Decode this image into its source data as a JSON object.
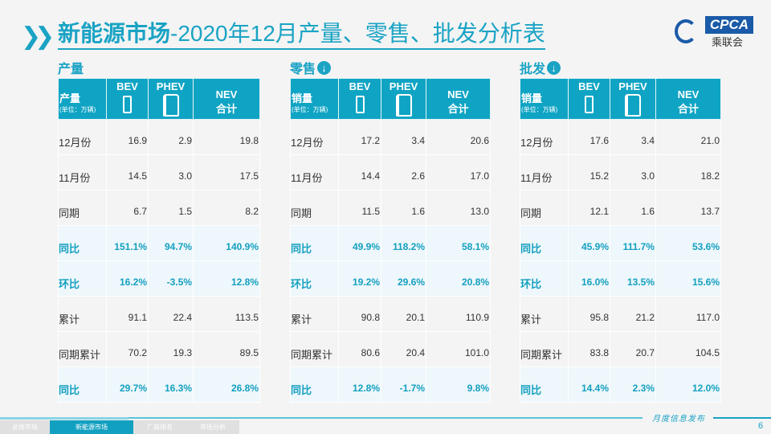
{
  "header": {
    "title_bold": "新能源市场",
    "title_rest": "-2020年12月产量、零售、批发分析表",
    "logo_text": "CPCA",
    "logo_cn": "乘联会"
  },
  "colors": {
    "accent": "#10a4c4",
    "highlight_row_bg": "#eef7fb"
  },
  "columns": [
    "BEV",
    "PHEV",
    "NEV",
    "合计"
  ],
  "tables": [
    {
      "section": "产量",
      "has_down_icon": false,
      "first_header": "产量",
      "unit": "(单位：万辆)",
      "rows": [
        [
          "12月份",
          "16.9",
          "2.9",
          "19.8",
          false
        ],
        [
          "11月份",
          "14.5",
          "3.0",
          "17.5",
          false
        ],
        [
          "同期",
          "6.7",
          "1.5",
          "8.2",
          false
        ],
        [
          "同比",
          "151.1%",
          "94.7%",
          "140.9%",
          true
        ],
        [
          "环比",
          "16.2%",
          "-3.5%",
          "12.8%",
          true
        ],
        [
          "累计",
          "91.1",
          "22.4",
          "113.5",
          false
        ],
        [
          "同期累计",
          "70.2",
          "19.3",
          "89.5",
          false
        ],
        [
          "同比",
          "29.7%",
          "16.3%",
          "26.8%",
          true
        ]
      ]
    },
    {
      "section": "零售",
      "has_down_icon": true,
      "first_header": "销量",
      "unit": "(单位：万辆)",
      "rows": [
        [
          "12月份",
          "17.2",
          "3.4",
          "20.6",
          false
        ],
        [
          "11月份",
          "14.4",
          "2.6",
          "17.0",
          false
        ],
        [
          "同期",
          "11.5",
          "1.6",
          "13.0",
          false
        ],
        [
          "同比",
          "49.9%",
          "118.2%",
          "58.1%",
          true
        ],
        [
          "环比",
          "19.2%",
          "29.6%",
          "20.8%",
          true
        ],
        [
          "累计",
          "90.8",
          "20.1",
          "110.9",
          false
        ],
        [
          "同期累计",
          "80.6",
          "20.4",
          "101.0",
          false
        ],
        [
          "同比",
          "12.8%",
          "-1.7%",
          "9.8%",
          true
        ]
      ]
    },
    {
      "section": "批发",
      "has_down_icon": true,
      "first_header": "销量",
      "unit": "(单位：万辆)",
      "rows": [
        [
          "12月份",
          "17.6",
          "3.4",
          "21.0",
          false
        ],
        [
          "11月份",
          "15.2",
          "3.0",
          "18.2",
          false
        ],
        [
          "同期",
          "12.1",
          "1.6",
          "13.7",
          false
        ],
        [
          "同比",
          "45.9%",
          "111.7%",
          "53.6%",
          true
        ],
        [
          "环比",
          "16.0%",
          "13.5%",
          "15.6%",
          true
        ],
        [
          "累计",
          "95.8",
          "21.2",
          "117.0",
          false
        ],
        [
          "同期累计",
          "83.8",
          "20.7",
          "104.5",
          false
        ],
        [
          "同比",
          "14.4%",
          "2.3%",
          "12.0%",
          true
        ]
      ]
    }
  ],
  "footer": {
    "publish": "月度信息发布",
    "page": "6",
    "tabs": [
      {
        "label": "总体市场",
        "active": false
      },
      {
        "label": "新能源市场",
        "active": true
      },
      {
        "label": "厂商排名",
        "active": false
      },
      {
        "label": "市场分析",
        "active": false
      }
    ]
  }
}
